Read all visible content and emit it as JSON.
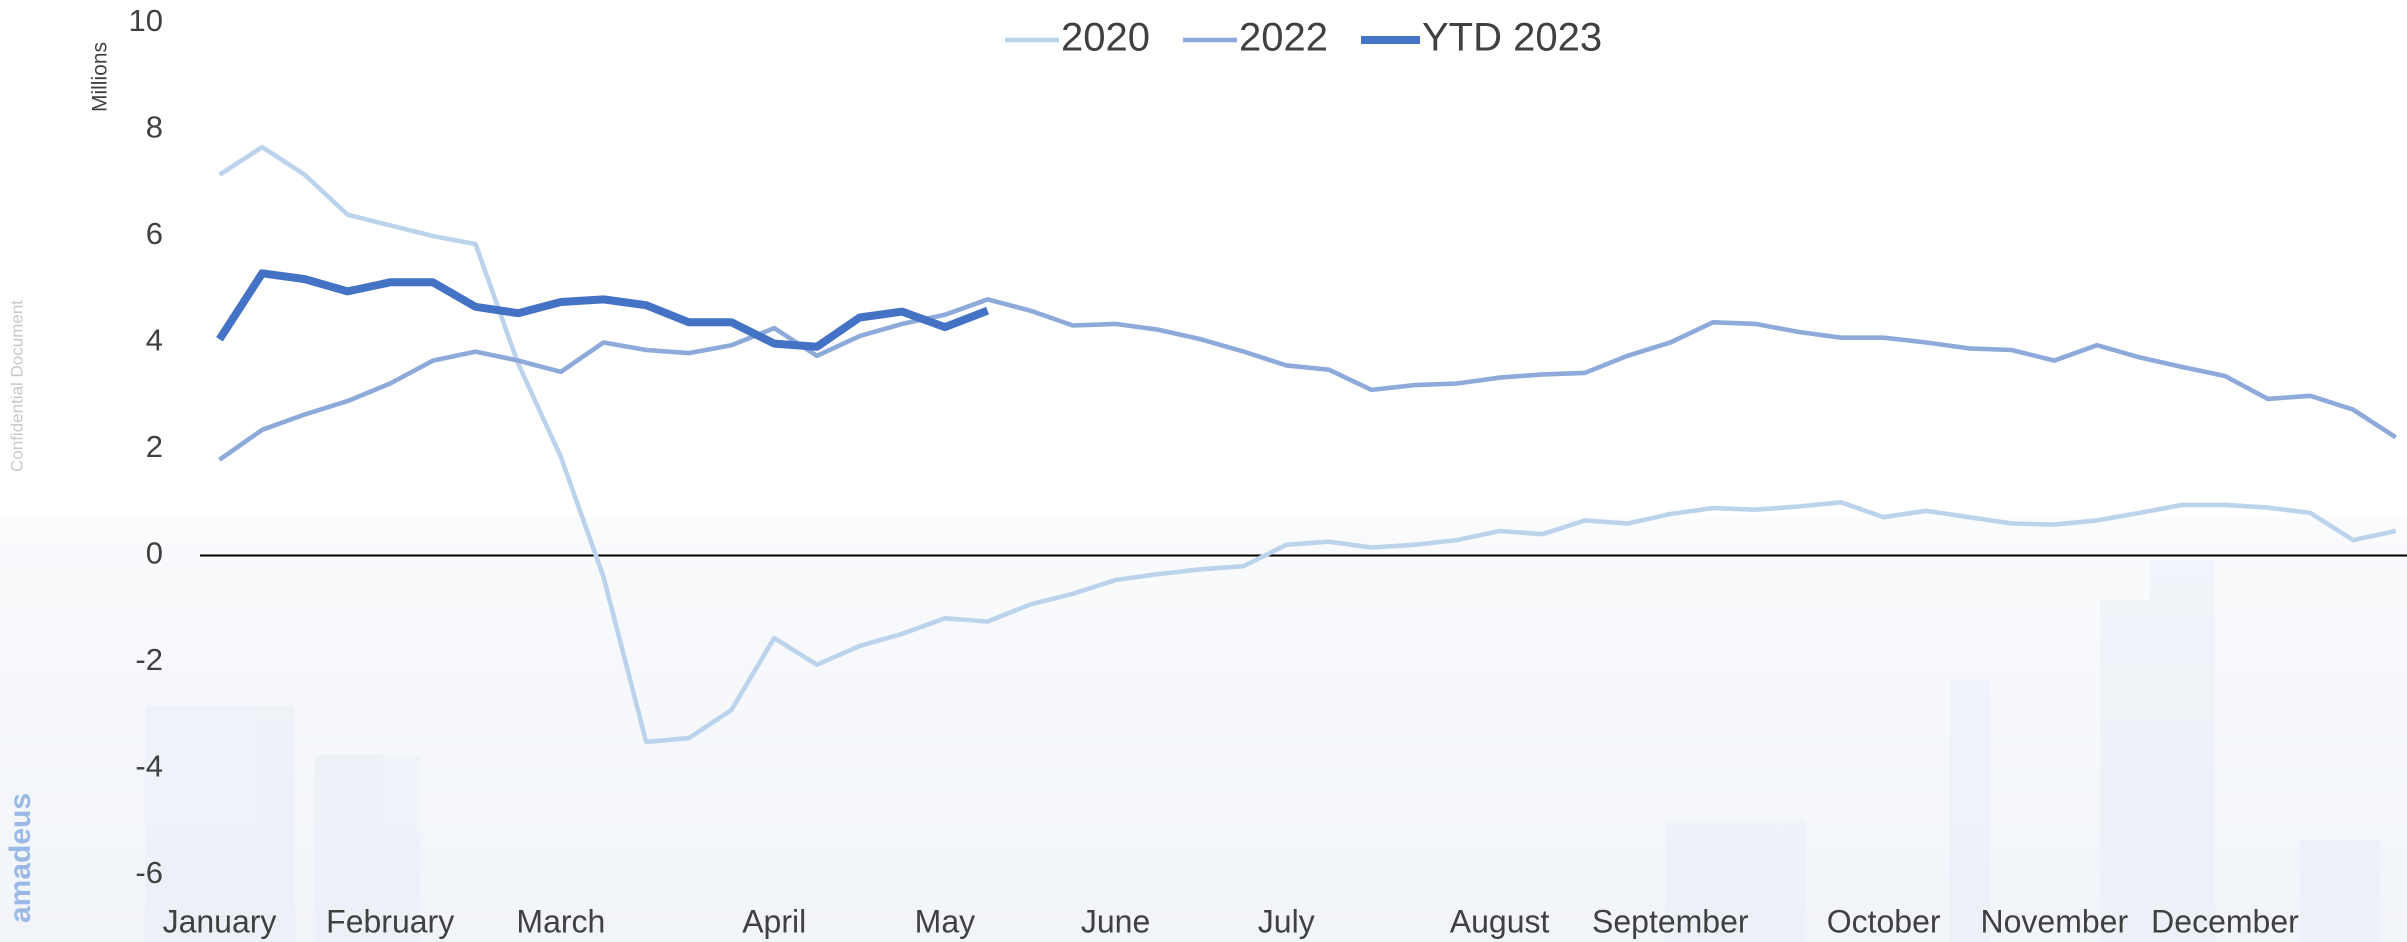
{
  "chart_data": {
    "type": "line",
    "y_label": "Millions",
    "watermark": "Confidential Document",
    "brand": "amadeus",
    "categories": [
      "January",
      null,
      null,
      null,
      "February",
      null,
      null,
      null,
      "March",
      null,
      null,
      null,
      null,
      "April",
      null,
      null,
      null,
      "May",
      null,
      null,
      null,
      "June",
      null,
      null,
      null,
      "July",
      null,
      null,
      null,
      null,
      "August",
      null,
      null,
      null,
      "September",
      null,
      null,
      null,
      null,
      "October",
      null,
      null,
      null,
      "November",
      null,
      null,
      null,
      "December",
      null,
      null,
      null,
      null
    ],
    "series": [
      {
        "name": "2020",
        "color": "#bcd3ec",
        "values": [
          7.15,
          7.67,
          7.15,
          6.4,
          6.2,
          6.0,
          5.85,
          3.6,
          1.85,
          -0.4,
          -3.5,
          -3.43,
          -2.9,
          -1.55,
          -2.05,
          -1.7,
          -1.47,
          -1.18,
          -1.24,
          -0.92,
          -0.72,
          -0.46,
          -0.35,
          -0.26,
          -0.2,
          0.2,
          0.26,
          0.15,
          0.2,
          0.29,
          0.46,
          0.4,
          0.66,
          0.6,
          0.78,
          0.89,
          0.86,
          0.92,
          1.0,
          0.72,
          0.84,
          0.72,
          0.6,
          0.58,
          0.66,
          0.8,
          0.95,
          0.95,
          0.9,
          0.8,
          0.29,
          0.46
        ]
      },
      {
        "name": "2022",
        "color": "#8eaadb",
        "values": [
          1.8,
          2.36,
          2.65,
          2.9,
          3.23,
          3.66,
          3.83,
          3.66,
          3.45,
          4.0,
          3.86,
          3.8,
          3.95,
          4.27,
          3.75,
          4.12,
          4.35,
          4.52,
          4.81,
          4.6,
          4.32,
          4.35,
          4.24,
          4.06,
          3.83,
          3.57,
          3.49,
          3.11,
          3.2,
          3.23,
          3.34,
          3.4,
          3.43,
          3.75,
          4.0,
          4.38,
          4.35,
          4.2,
          4.09,
          4.09,
          4.0,
          3.89,
          3.86,
          3.66,
          3.95,
          3.72,
          3.54,
          3.37,
          2.94,
          3.0,
          2.74,
          2.22
        ]
      },
      {
        "name": "YTD 2023",
        "color": "#4472c4",
        "values": [
          4.06,
          5.3,
          5.19,
          4.96,
          5.13,
          5.13,
          4.67,
          4.55,
          4.76,
          4.81,
          4.7,
          4.38,
          4.38,
          3.98,
          3.92,
          4.47,
          4.58,
          4.29,
          4.6,
          null,
          null,
          null,
          null,
          null,
          null,
          null,
          null,
          null,
          null,
          null,
          null,
          null,
          null,
          null,
          null,
          null,
          null,
          null,
          null,
          null,
          null,
          null,
          null,
          null,
          null,
          null,
          null,
          null,
          null,
          null,
          null,
          null
        ]
      }
    ],
    "ylim": [
      -6,
      10
    ],
    "yticks": [
      -6,
      -4,
      -2,
      0,
      2,
      4,
      6,
      8,
      10
    ],
    "grid": false
  }
}
